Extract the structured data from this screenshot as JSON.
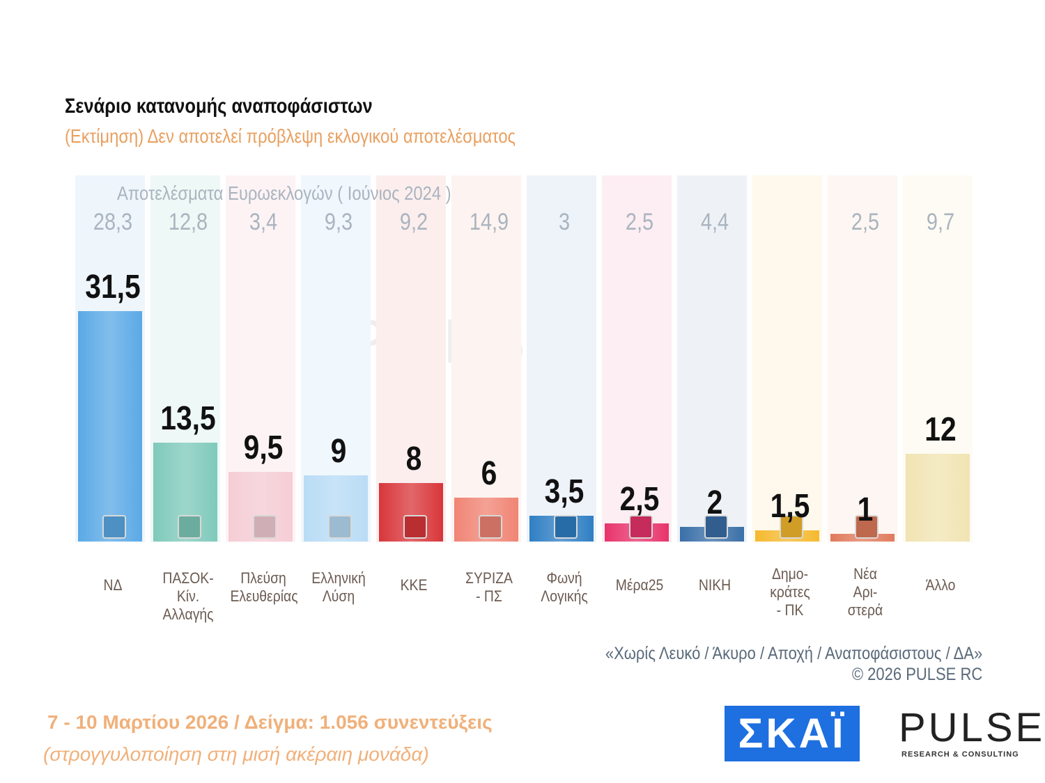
{
  "title": "Σενάριο κατανομής αναποφάσιστων",
  "subtitle": "(Εκτίμηση)   Δεν αποτελεί πρόβλεψη εκλογικού αποτελέσματος",
  "chart_data": {
    "type": "bar",
    "title": "Σενάριο κατανομής αναποφάσιστων",
    "categories": [
      "ΝΔ",
      "ΠΑΣΟΚ-Κίν. Αλλαγής",
      "Πλεύση Ελευθερίας",
      "Ελληνική Λύση",
      "ΚΚΕ",
      "ΣΥΡΙΖΑ - ΠΣ",
      "Φωνή Λογικής",
      "Μέρα25",
      "ΝΙΚΗ",
      "Δημο- κράτες - ΠΚ",
      "Νέα Αρι- στερά",
      "Άλλο"
    ],
    "label_lines": [
      [
        "ΝΔ"
      ],
      [
        "ΠΑΣΟΚ-Κίν.",
        "Αλλαγής"
      ],
      [
        "Πλεύση",
        "Ελευθερίας"
      ],
      [
        "Ελληνική",
        "Λύση"
      ],
      [
        "ΚΚΕ"
      ],
      [
        "ΣΥΡΙΖΑ",
        "- ΠΣ"
      ],
      [
        "Φωνή",
        "Λογικής"
      ],
      [
        "Μέρα25"
      ],
      [
        "ΝΙΚΗ"
      ],
      [
        "Δημο-",
        "κράτες",
        "- ΠΚ"
      ],
      [
        "Νέα",
        "Αρι-",
        "στερά"
      ],
      [
        "Άλλο"
      ]
    ],
    "values": [
      31.5,
      13.5,
      9.5,
      9,
      8,
      6,
      3.5,
      2.5,
      2,
      1.5,
      1,
      12
    ],
    "value_labels": [
      "31,5",
      "13,5",
      "9,5",
      "9",
      "8",
      "6",
      "3,5",
      "2,5",
      "2",
      "1,5",
      "1",
      "12"
    ],
    "euro_title": "Αποτελέσματα Ευρωεκλογών  ( Ιούνιος 2024 )",
    "euro_labels": [
      "28,3",
      "12,8",
      "3,4",
      "9,3",
      "9,2",
      "14,9",
      "3",
      "2,5",
      "4,4",
      "",
      "2,5",
      "9,7"
    ],
    "colors": [
      "#5aa9e6",
      "#7fcabb",
      "#f5cdd5",
      "#b9dcf5",
      "#d8363a",
      "#f08474",
      "#2f7fc4",
      "#e8336b",
      "#3a6fa8",
      "#f5b92e",
      "#e07a5c",
      "#f1e4b3"
    ],
    "bg_colors": [
      "#eef6fc",
      "#eef8f6",
      "#fdf3f5",
      "#f0f7fd",
      "#fdeeee",
      "#fdf3f0",
      "#eef3f9",
      "#fdeef3",
      "#eef2f7",
      "#fef9ec",
      "#fdf6f2",
      "#fdfbf3"
    ],
    "ylim": [
      0,
      32
    ]
  },
  "note_line1": "«Χωρίς Λευκό / Άκυρο / Αποχή / Αναποφάσιστους / ΔΑ»",
  "note_line2": "©  2026  PULSE RC",
  "date_line": "7 - 10  Μαρτίου 2026  /  Δείγμα:  1.056 συνεντεύξεις",
  "rounding_line": "(στρογγυλοποίηση στη μισή ακέραιη μονάδα)",
  "logos": {
    "skai": "ΣΚΑΪ",
    "pulse": "PULSE",
    "pulse_sub": "RESEARCH & CONSULTING"
  }
}
